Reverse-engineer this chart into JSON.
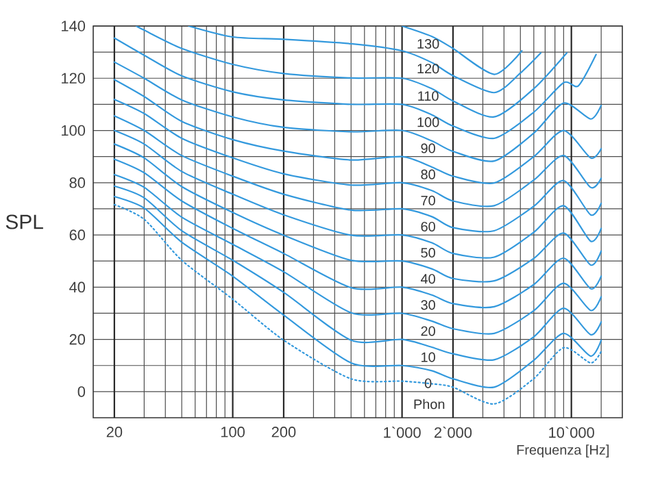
{
  "chart_data": {
    "type": "line",
    "xlabel": "Frequenza [Hz]",
    "ylabel": "SPL",
    "log": "x",
    "grid": true,
    "marker": "none",
    "xlim": [
      15,
      20000
    ],
    "ylim": [
      -10,
      140
    ],
    "xticks": [
      20,
      {
        "value": 30,
        "label": null
      },
      {
        "value": 40,
        "label": null
      },
      {
        "value": 50,
        "label": null
      },
      {
        "value": 60,
        "label": null
      },
      {
        "value": 70,
        "label": null
      },
      {
        "value": 80,
        "label": null
      },
      {
        "value": 90,
        "label": null
      },
      100,
      200,
      {
        "value": 300,
        "label": null
      },
      {
        "value": 400,
        "label": null
      },
      {
        "value": 500,
        "label": null
      },
      {
        "value": 600,
        "label": null
      },
      {
        "value": 700,
        "label": null
      },
      {
        "value": 800,
        "label": null
      },
      {
        "value": 900,
        "label": null
      },
      {
        "value": 1000,
        "label": "1`000"
      },
      {
        "value": 2000,
        "label": "2`000"
      },
      {
        "value": 3000,
        "label": null
      },
      {
        "value": 4000,
        "label": null
      },
      {
        "value": 5000,
        "label": null
      },
      {
        "value": 6000,
        "label": null
      },
      {
        "value": 7000,
        "label": null
      },
      {
        "value": 8000,
        "label": null
      },
      {
        "value": 9000,
        "label": null
      },
      {
        "value": 10000,
        "label": "10`000"
      },
      {
        "value": 15000,
        "label": null
      }
    ],
    "yticks": [
      0,
      {
        "value": 10,
        "label": null
      },
      20,
      {
        "value": 30,
        "label": null
      },
      40,
      {
        "value": 50,
        "label": null
      },
      60,
      {
        "value": 70,
        "label": null
      },
      80,
      {
        "value": 90,
        "label": null
      },
      100,
      {
        "value": 110,
        "label": null
      },
      120,
      {
        "value": 130,
        "label": null
      },
      140
    ],
    "annotations": [
      "Phon"
    ],
    "series": [
      {
        "color": "#3399dd",
        "line_style": "dotted",
        "x": [
          20,
          30,
          50,
          100,
          200,
          500,
          1000,
          1500,
          2000,
          3500,
          6000,
          9000,
          13000,
          15000
        ],
        "values": [
          71.6,
          66,
          50.3,
          35.4,
          19.7,
          4.9,
          4,
          3,
          1.7,
          -4.7,
          5,
          16.8,
          11,
          15.4
        ]
      },
      {
        "name": "0",
        "color": "#3399dd",
        "x": [
          20,
          30,
          50,
          100,
          200,
          500,
          1000,
          1500,
          2000,
          3500,
          6000,
          9000,
          13000,
          15000
        ],
        "values": [
          74.7,
          70.3,
          57.2,
          44.2,
          29.3,
          11,
          10,
          8,
          4.9,
          1.7,
          12,
          22.3,
          13.6,
          19.7
        ]
      },
      {
        "name": "10",
        "color": "#3399dd",
        "x": [
          20,
          30,
          50,
          100,
          200,
          500,
          1000,
          1500,
          2000,
          3500,
          6000,
          9000,
          13000,
          15000
        ],
        "values": [
          78.7,
          74.2,
          61.6,
          50.3,
          38,
          19.7,
          20,
          17,
          14.5,
          12.2,
          21,
          31.9,
          21.8,
          26.7
        ]
      },
      {
        "name": "20",
        "color": "#3399dd",
        "x": [
          20,
          30,
          50,
          100,
          200,
          500,
          1000,
          1500,
          2000,
          3500,
          6000,
          9000,
          13000,
          15000
        ],
        "values": [
          83.1,
          78.2,
          66.8,
          56.4,
          45.9,
          30.2,
          30,
          27,
          24.1,
          22.3,
          31,
          41.5,
          31.1,
          36.3
        ]
      },
      {
        "name": "30",
        "color": "#3399dd",
        "x": [
          20,
          30,
          50,
          100,
          200,
          500,
          1000,
          1500,
          2000,
          3500,
          6000,
          9000,
          13000,
          15000
        ],
        "values": [
          89,
          83.8,
          73,
          62.5,
          52.9,
          39.8,
          40,
          37,
          33.7,
          32.5,
          41,
          51.1,
          39.4,
          44.2
        ]
      },
      {
        "name": "40",
        "color": "#3399dd",
        "x": [
          20,
          30,
          50,
          100,
          200,
          500,
          1000,
          1500,
          2000,
          3500,
          6000,
          9000,
          13000,
          15000
        ],
        "values": [
          94.8,
          89.5,
          78.5,
          68.6,
          59.9,
          50.3,
          50,
          47,
          43.3,
          42.4,
          51,
          60.7,
          48.5,
          53.8
        ]
      },
      {
        "name": "50",
        "color": "#3399dd",
        "x": [
          20,
          30,
          50,
          100,
          200,
          500,
          1000,
          1500,
          2000,
          3500,
          6000,
          9000,
          13000,
          15000
        ],
        "values": [
          100,
          94.8,
          84.3,
          75.6,
          67.7,
          59.9,
          60,
          57,
          52.9,
          51.5,
          61,
          71.2,
          57.6,
          62.5
        ]
      },
      {
        "name": "60",
        "color": "#3399dd",
        "x": [
          20,
          30,
          50,
          100,
          200,
          500,
          1000,
          1500,
          2000,
          3500,
          6000,
          9000,
          13000,
          15000
        ],
        "values": [
          105.6,
          100,
          90.4,
          82.5,
          75.6,
          69.5,
          70,
          67,
          62.8,
          61.6,
          71,
          80.8,
          67.7,
          72.1
        ]
      },
      {
        "name": "70",
        "color": "#3399dd",
        "x": [
          20,
          30,
          50,
          100,
          200,
          500,
          1000,
          1500,
          2000,
          3500,
          6000,
          9000,
          13000,
          15000
        ],
        "values": [
          111.9,
          106.5,
          97,
          89.5,
          83.4,
          79.1,
          80,
          77,
          73,
          71.2,
          81,
          90.4,
          78.2,
          81.7
        ]
      },
      {
        "name": "80",
        "color": "#3399dd",
        "x": [
          20,
          30,
          50,
          100,
          200,
          500,
          1000,
          1500,
          2000,
          3500,
          6000,
          9000,
          13000,
          15000
        ],
        "values": [
          119.5,
          113,
          103.5,
          96.5,
          92.1,
          88.7,
          90,
          86,
          82.5,
          79.9,
          90,
          100,
          89.5,
          93
        ]
      },
      {
        "name": "90",
        "color": "#3399dd",
        "x": [
          20,
          30,
          50,
          100,
          200,
          500,
          1000,
          1500,
          2000,
          3500,
          6000,
          9000,
          13000,
          15000
        ],
        "values": [
          126.2,
          120,
          111.7,
          105.2,
          101.2,
          99.5,
          100,
          96,
          92,
          88.3,
          99,
          110.5,
          104.4,
          109.6
        ]
      },
      {
        "name": "100",
        "color": "#3399dd",
        "x": [
          20,
          30,
          50,
          100,
          200,
          500,
          1000,
          1500,
          2000,
          3500,
          6000,
          9000,
          11000,
          14000
        ],
        "values": [
          135.4,
          128.8,
          120.9,
          114.8,
          111.7,
          110,
          110,
          106,
          101.7,
          97,
          107,
          118.3,
          117.1,
          129.1
        ]
      },
      {
        "name": "110",
        "color": "#3399dd",
        "x": [
          27,
          30,
          50,
          100,
          200,
          500,
          1000,
          1500,
          2000,
          3500,
          6000,
          9400
        ],
        "values": [
          140,
          138.4,
          131.4,
          125.3,
          121.8,
          120.1,
          120,
          116,
          111.3,
          105.2,
          116,
          129.7
        ]
      },
      {
        "name": "120",
        "color": "#3399dd",
        "x": [
          55,
          100,
          200,
          500,
          1000,
          1500,
          2000,
          3500,
          5000,
          6600
        ],
        "values": [
          140,
          135.8,
          134.9,
          133.2,
          130.5,
          126,
          121,
          114.5,
          122,
          129.7
        ]
      },
      {
        "name": "130",
        "color": "#3399dd",
        "x": [
          1000,
          1500,
          2000,
          3500,
          5100
        ],
        "values": [
          140,
          136,
          131.4,
          121.5,
          130.5
        ]
      }
    ]
  }
}
